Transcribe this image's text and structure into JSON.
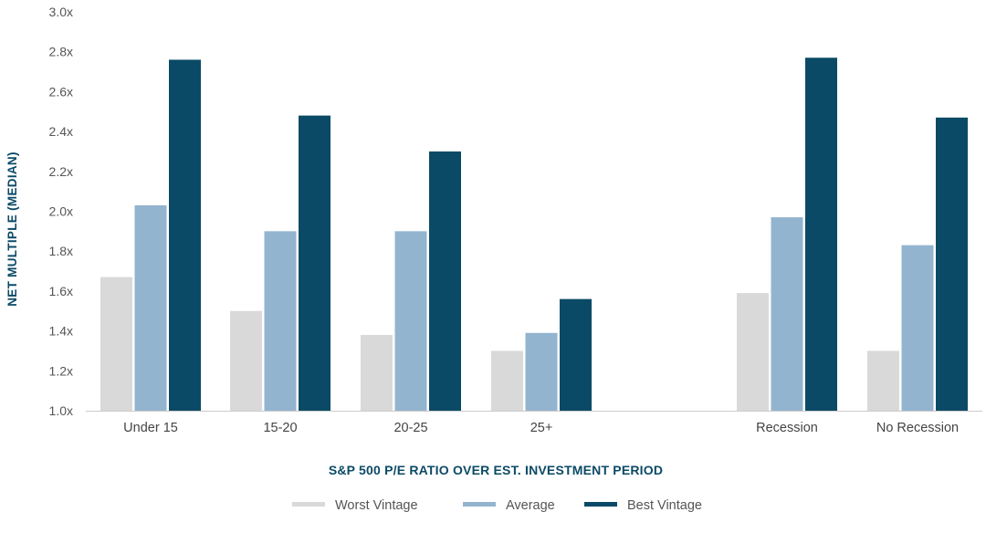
{
  "chart_data": {
    "type": "bar",
    "xlabel": "S&P 500 P/E RATIO OVER EST. INVESTMENT PERIOD",
    "ylabel": "NET MULTIPLE (MEDIAN)",
    "ylim": [
      1.0,
      3.0
    ],
    "yticks": [
      "1.0x",
      "1.2x",
      "1.4x",
      "1.6x",
      "1.8x",
      "2.0x",
      "2.2x",
      "2.4x",
      "2.6x",
      "2.8x",
      "3.0x"
    ],
    "categories": [
      "Under 15",
      "15-20",
      "20-25",
      "25+",
      "Recession",
      "No Recession"
    ],
    "series": [
      {
        "name": "Worst Vintage",
        "color": "#d9d9d9",
        "values": [
          1.67,
          1.5,
          1.38,
          1.3,
          1.59,
          1.3
        ]
      },
      {
        "name": "Average",
        "color": "#93b4cf",
        "values": [
          2.03,
          1.9,
          1.9,
          1.39,
          1.97,
          1.83
        ]
      },
      {
        "name": "Best Vintage",
        "color": "#0b4a66",
        "values": [
          2.76,
          2.48,
          2.3,
          1.56,
          2.77,
          2.47
        ]
      }
    ],
    "legend": "bottom-center",
    "grid": false
  }
}
